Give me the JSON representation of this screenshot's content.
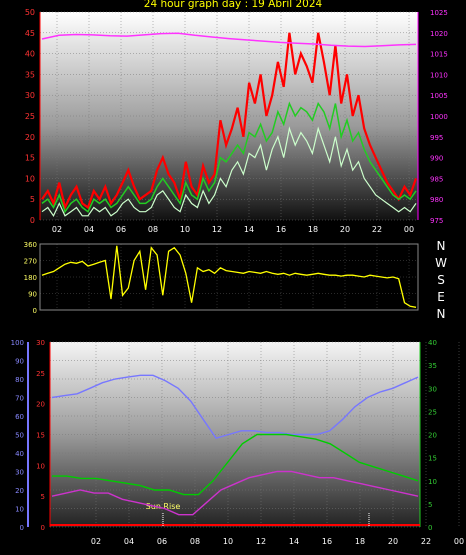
{
  "title": "24 hour graph day : 19 Abril 2024",
  "colors": {
    "wind": "#ff0000",
    "gust_avg": "#22cc22",
    "gust_light": "#ccffcc",
    "pressure": "#ff33ff",
    "direction": "#ffff00",
    "humidity": "#7777ff",
    "temp_red": "#ff3333",
    "temp_green": "#00cc00",
    "dew": "#cc33cc",
    "sunrise": "#ffff66"
  },
  "chart_data": [
    {
      "type": "line",
      "name": "wind-pressure",
      "x_ticks": [
        "02",
        "04",
        "06",
        "08",
        "10",
        "12",
        "14",
        "16",
        "18",
        "20",
        "22",
        "00"
      ],
      "left_axis": {
        "ticks": [
          "50",
          "45",
          "40",
          "35",
          "30",
          "25",
          "20",
          "15",
          "10",
          "5",
          "0"
        ],
        "ylim": [
          0,
          50
        ]
      },
      "right_axis": {
        "ticks": [
          "1025",
          "1020",
          "1015",
          "1010",
          "1005",
          "1000",
          "995",
          "990",
          "985",
          "980",
          "975"
        ],
        "ylim": [
          975,
          1025
        ]
      },
      "series": [
        {
          "id": "gust",
          "color": "#ff0000",
          "values": [
            5,
            7,
            4,
            9,
            3,
            6,
            8,
            4,
            3,
            7,
            5,
            8,
            4,
            6,
            9,
            12,
            8,
            5,
            6,
            7,
            12,
            15,
            11,
            9,
            5,
            14,
            8,
            6,
            13,
            9,
            11,
            24,
            18,
            22,
            27,
            20,
            33,
            28,
            35,
            25,
            30,
            38,
            32,
            45,
            35,
            40,
            37,
            33,
            45,
            38,
            30,
            42,
            28,
            35,
            25,
            30,
            22,
            18,
            15,
            12,
            9,
            7,
            5,
            8,
            6,
            10
          ]
        },
        {
          "id": "avg",
          "color": "#22cc22",
          "values": [
            4,
            5,
            3,
            6,
            2,
            4,
            5,
            3,
            2,
            5,
            4,
            5,
            3,
            4,
            6,
            8,
            6,
            4,
            4,
            5,
            8,
            10,
            8,
            6,
            4,
            9,
            6,
            5,
            10,
            7,
            9,
            15,
            14,
            16,
            18,
            16,
            21,
            20,
            23,
            19,
            21,
            26,
            23,
            28,
            25,
            27,
            26,
            24,
            28,
            26,
            22,
            28,
            20,
            24,
            19,
            21,
            17,
            14,
            12,
            10,
            8,
            6,
            5,
            6,
            5,
            7
          ]
        },
        {
          "id": "light",
          "color": "#ccffcc",
          "values": [
            2,
            3,
            1,
            4,
            1,
            2,
            3,
            1,
            1,
            3,
            2,
            3,
            1,
            2,
            4,
            5,
            3,
            2,
            2,
            3,
            6,
            7,
            5,
            3,
            2,
            6,
            4,
            3,
            7,
            4,
            6,
            10,
            8,
            12,
            14,
            11,
            16,
            15,
            18,
            12,
            17,
            20,
            15,
            22,
            18,
            21,
            19,
            16,
            22,
            18,
            14,
            20,
            13,
            17,
            12,
            14,
            10,
            8,
            6,
            5,
            4,
            3,
            2,
            3,
            2,
            4
          ]
        },
        {
          "id": "pressure",
          "color": "#ff33ff",
          "values": [
            1018.5,
            1019.4,
            1019.6,
            1019.5,
            1019.3,
            1019.2,
            1019.5,
            1019.8,
            1019.9,
            1019.4,
            1019.0,
            1018.6,
            1018.3,
            1018.0,
            1017.7,
            1017.5,
            1017.3,
            1017.0,
            1016.8,
            1016.7,
            1016.9,
            1017.1,
            1017.2
          ]
        }
      ]
    },
    {
      "type": "line",
      "name": "wind-direction",
      "left_axis": {
        "ticks": [
          "360",
          "270",
          "180",
          "90",
          "0"
        ],
        "ylim": [
          0,
          360
        ]
      },
      "compass": [
        "N",
        "W",
        "S",
        "E",
        "N"
      ],
      "series": [
        {
          "id": "direction",
          "color": "#ffff00",
          "values": [
            190,
            200,
            210,
            230,
            250,
            260,
            255,
            265,
            240,
            250,
            260,
            270,
            60,
            350,
            80,
            120,
            270,
            320,
            110,
            340,
            300,
            80,
            320,
            340,
            300,
            200,
            40,
            230,
            210,
            220,
            200,
            230,
            215,
            210,
            205,
            200,
            210,
            205,
            200,
            210,
            200,
            195,
            200,
            190,
            200,
            195,
            190,
            195,
            200,
            195,
            190,
            190,
            185,
            190,
            190,
            185,
            180,
            190,
            185,
            180,
            175,
            180,
            170,
            40,
            20,
            15
          ]
        }
      ]
    },
    {
      "type": "line",
      "name": "temp-humidity",
      "x_ticks": [
        "02",
        "04",
        "06",
        "08",
        "10",
        "12",
        "14",
        "16",
        "18",
        "20",
        "22",
        "00"
      ],
      "left_axis_blue": {
        "ticks": [
          "100",
          "90",
          "80",
          "70",
          "60",
          "50",
          "40",
          "30",
          "20",
          "10",
          "0"
        ],
        "ylim": [
          0,
          100
        ]
      },
      "left_axis_red": {
        "ticks": [
          "30",
          "25",
          "20",
          "15",
          "10",
          "5",
          "0"
        ],
        "ylim": [
          0,
          30
        ]
      },
      "right_axis": {
        "ticks": [
          "40",
          "35",
          "30",
          "25",
          "20",
          "15",
          "10",
          "5",
          "0"
        ],
        "ylim": [
          0,
          40
        ]
      },
      "annotation": "Sun Rise",
      "series": [
        {
          "id": "humidity",
          "color": "#7777ff",
          "values": [
            70,
            71,
            72,
            75,
            78,
            80,
            81,
            82,
            82,
            79,
            75,
            68,
            58,
            48,
            50,
            52,
            52,
            51,
            51,
            50,
            50,
            50,
            52,
            58,
            65,
            70,
            73,
            75,
            78,
            81
          ]
        },
        {
          "id": "temp",
          "color": "#00cc00",
          "values": [
            11,
            11,
            10.5,
            10.5,
            10,
            9.5,
            9,
            8,
            8,
            7,
            7,
            10,
            14,
            18,
            20,
            20,
            20,
            19.5,
            19,
            18,
            16,
            14,
            13,
            12,
            11,
            10
          ]
        },
        {
          "id": "dew",
          "color": "#cc33cc",
          "values": [
            5,
            5.5,
            6,
            5.5,
            5.5,
            4.5,
            4,
            3.5,
            3,
            2,
            2,
            4,
            6,
            7,
            8,
            8.5,
            9,
            9,
            8.5,
            8,
            8,
            7.5,
            7,
            6.5,
            6,
            5.5,
            5
          ]
        }
      ]
    }
  ]
}
